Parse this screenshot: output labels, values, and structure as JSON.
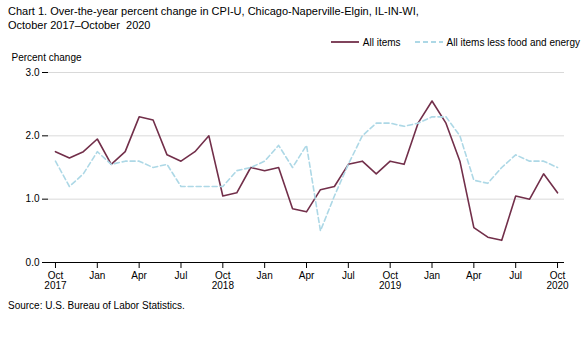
{
  "chart_data": {
    "type": "line",
    "title": "Chart 1. Over-the-year percent change in CPI-U, Chicago-Naperville-Elgin, IL-IN-WI,",
    "subtitle": "October 2017–October  2020",
    "ylabel": "Percent change",
    "source": "Source: U.S. Bureau of Labor Statistics.",
    "categories": [
      "Oct\n2017",
      null,
      null,
      "Jan",
      null,
      null,
      "Apr",
      null,
      null,
      "Jul",
      null,
      null,
      "Oct\n2018",
      null,
      null,
      "Jan",
      null,
      null,
      "Apr",
      null,
      null,
      "Jul",
      null,
      null,
      "Oct\n2019",
      null,
      null,
      "Jan",
      null,
      null,
      "Apr",
      null,
      null,
      "Jul",
      null,
      null,
      "Oct\n2020"
    ],
    "series": [
      {
        "name": "All items",
        "color": "#722F4A",
        "line_style": "solid",
        "values": [
          1.75,
          1.65,
          1.75,
          1.95,
          1.55,
          1.75,
          2.3,
          2.25,
          1.7,
          1.6,
          1.75,
          2.0,
          1.05,
          1.1,
          1.5,
          1.45,
          1.5,
          0.85,
          0.8,
          1.15,
          1.2,
          1.55,
          1.6,
          1.4,
          1.6,
          1.55,
          2.2,
          2.55,
          2.2,
          1.6,
          0.55,
          0.4,
          0.35,
          1.05,
          1.0,
          1.4,
          1.1
        ]
      },
      {
        "name": "All items less food and energy",
        "color": "#ADD8E6",
        "line_style": "dashed",
        "values": [
          1.6,
          1.2,
          1.4,
          1.75,
          1.55,
          1.6,
          1.6,
          1.5,
          1.55,
          1.2,
          1.2,
          1.2,
          1.2,
          1.45,
          1.5,
          1.6,
          1.85,
          1.5,
          1.85,
          0.5,
          1.05,
          1.55,
          2.0,
          2.2,
          2.2,
          2.15,
          2.2,
          2.3,
          2.3,
          2.0,
          1.3,
          1.25,
          1.5,
          1.7,
          1.6,
          1.6,
          1.5
        ]
      }
    ],
    "ylim": [
      0.0,
      3.0
    ],
    "yticks": [
      {
        "value": 0,
        "label": "0.0"
      },
      {
        "value": 1,
        "label": "1.0"
      },
      {
        "value": 2,
        "label": "2.0"
      },
      {
        "value": 3,
        "label": "3.0"
      }
    ],
    "grid": true,
    "legend": "upper right"
  }
}
